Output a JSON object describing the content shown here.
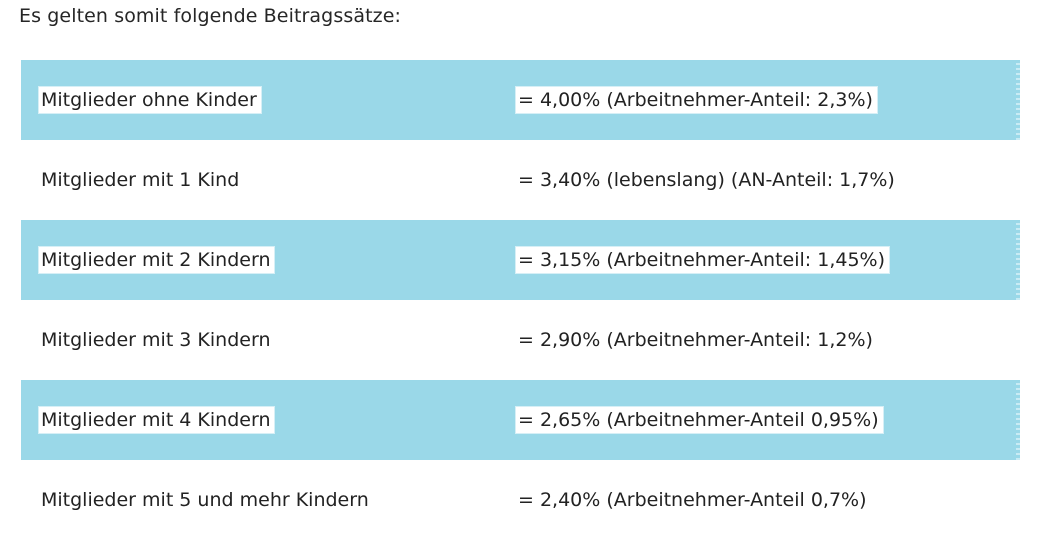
{
  "intro_text": "Es gelten somit folgende Beitragssätze:",
  "colors": {
    "row_highlight": "#9ad8e8",
    "text": "#222222"
  },
  "rows": [
    {
      "group": "Mitglieder ohne Kinder",
      "rate": "= 4,00% (Arbeitnehmer-Anteil: 2,3%)",
      "highlighted": true
    },
    {
      "group": "Mitglieder mit 1 Kind",
      "rate": "= 3,40% (lebenslang) (AN-Anteil: 1,7%)",
      "highlighted": false
    },
    {
      "group": "Mitglieder mit 2 Kindern",
      "rate": "= 3,15% (Arbeitnehmer-Anteil: 1,45%)",
      "highlighted": true
    },
    {
      "group": "Mitglieder mit 3 Kindern",
      "rate": "= 2,90% (Arbeitnehmer-Anteil: 1,2%)",
      "highlighted": false
    },
    {
      "group": "Mitglieder mit 4 Kindern",
      "rate": "= 2,65% (Arbeitnehmer-Anteil 0,95%)",
      "highlighted": true
    },
    {
      "group": "Mitglieder mit 5 und mehr Kindern",
      "rate": "= 2,40% (Arbeitnehmer-Anteil 0,7%)",
      "highlighted": false
    }
  ]
}
